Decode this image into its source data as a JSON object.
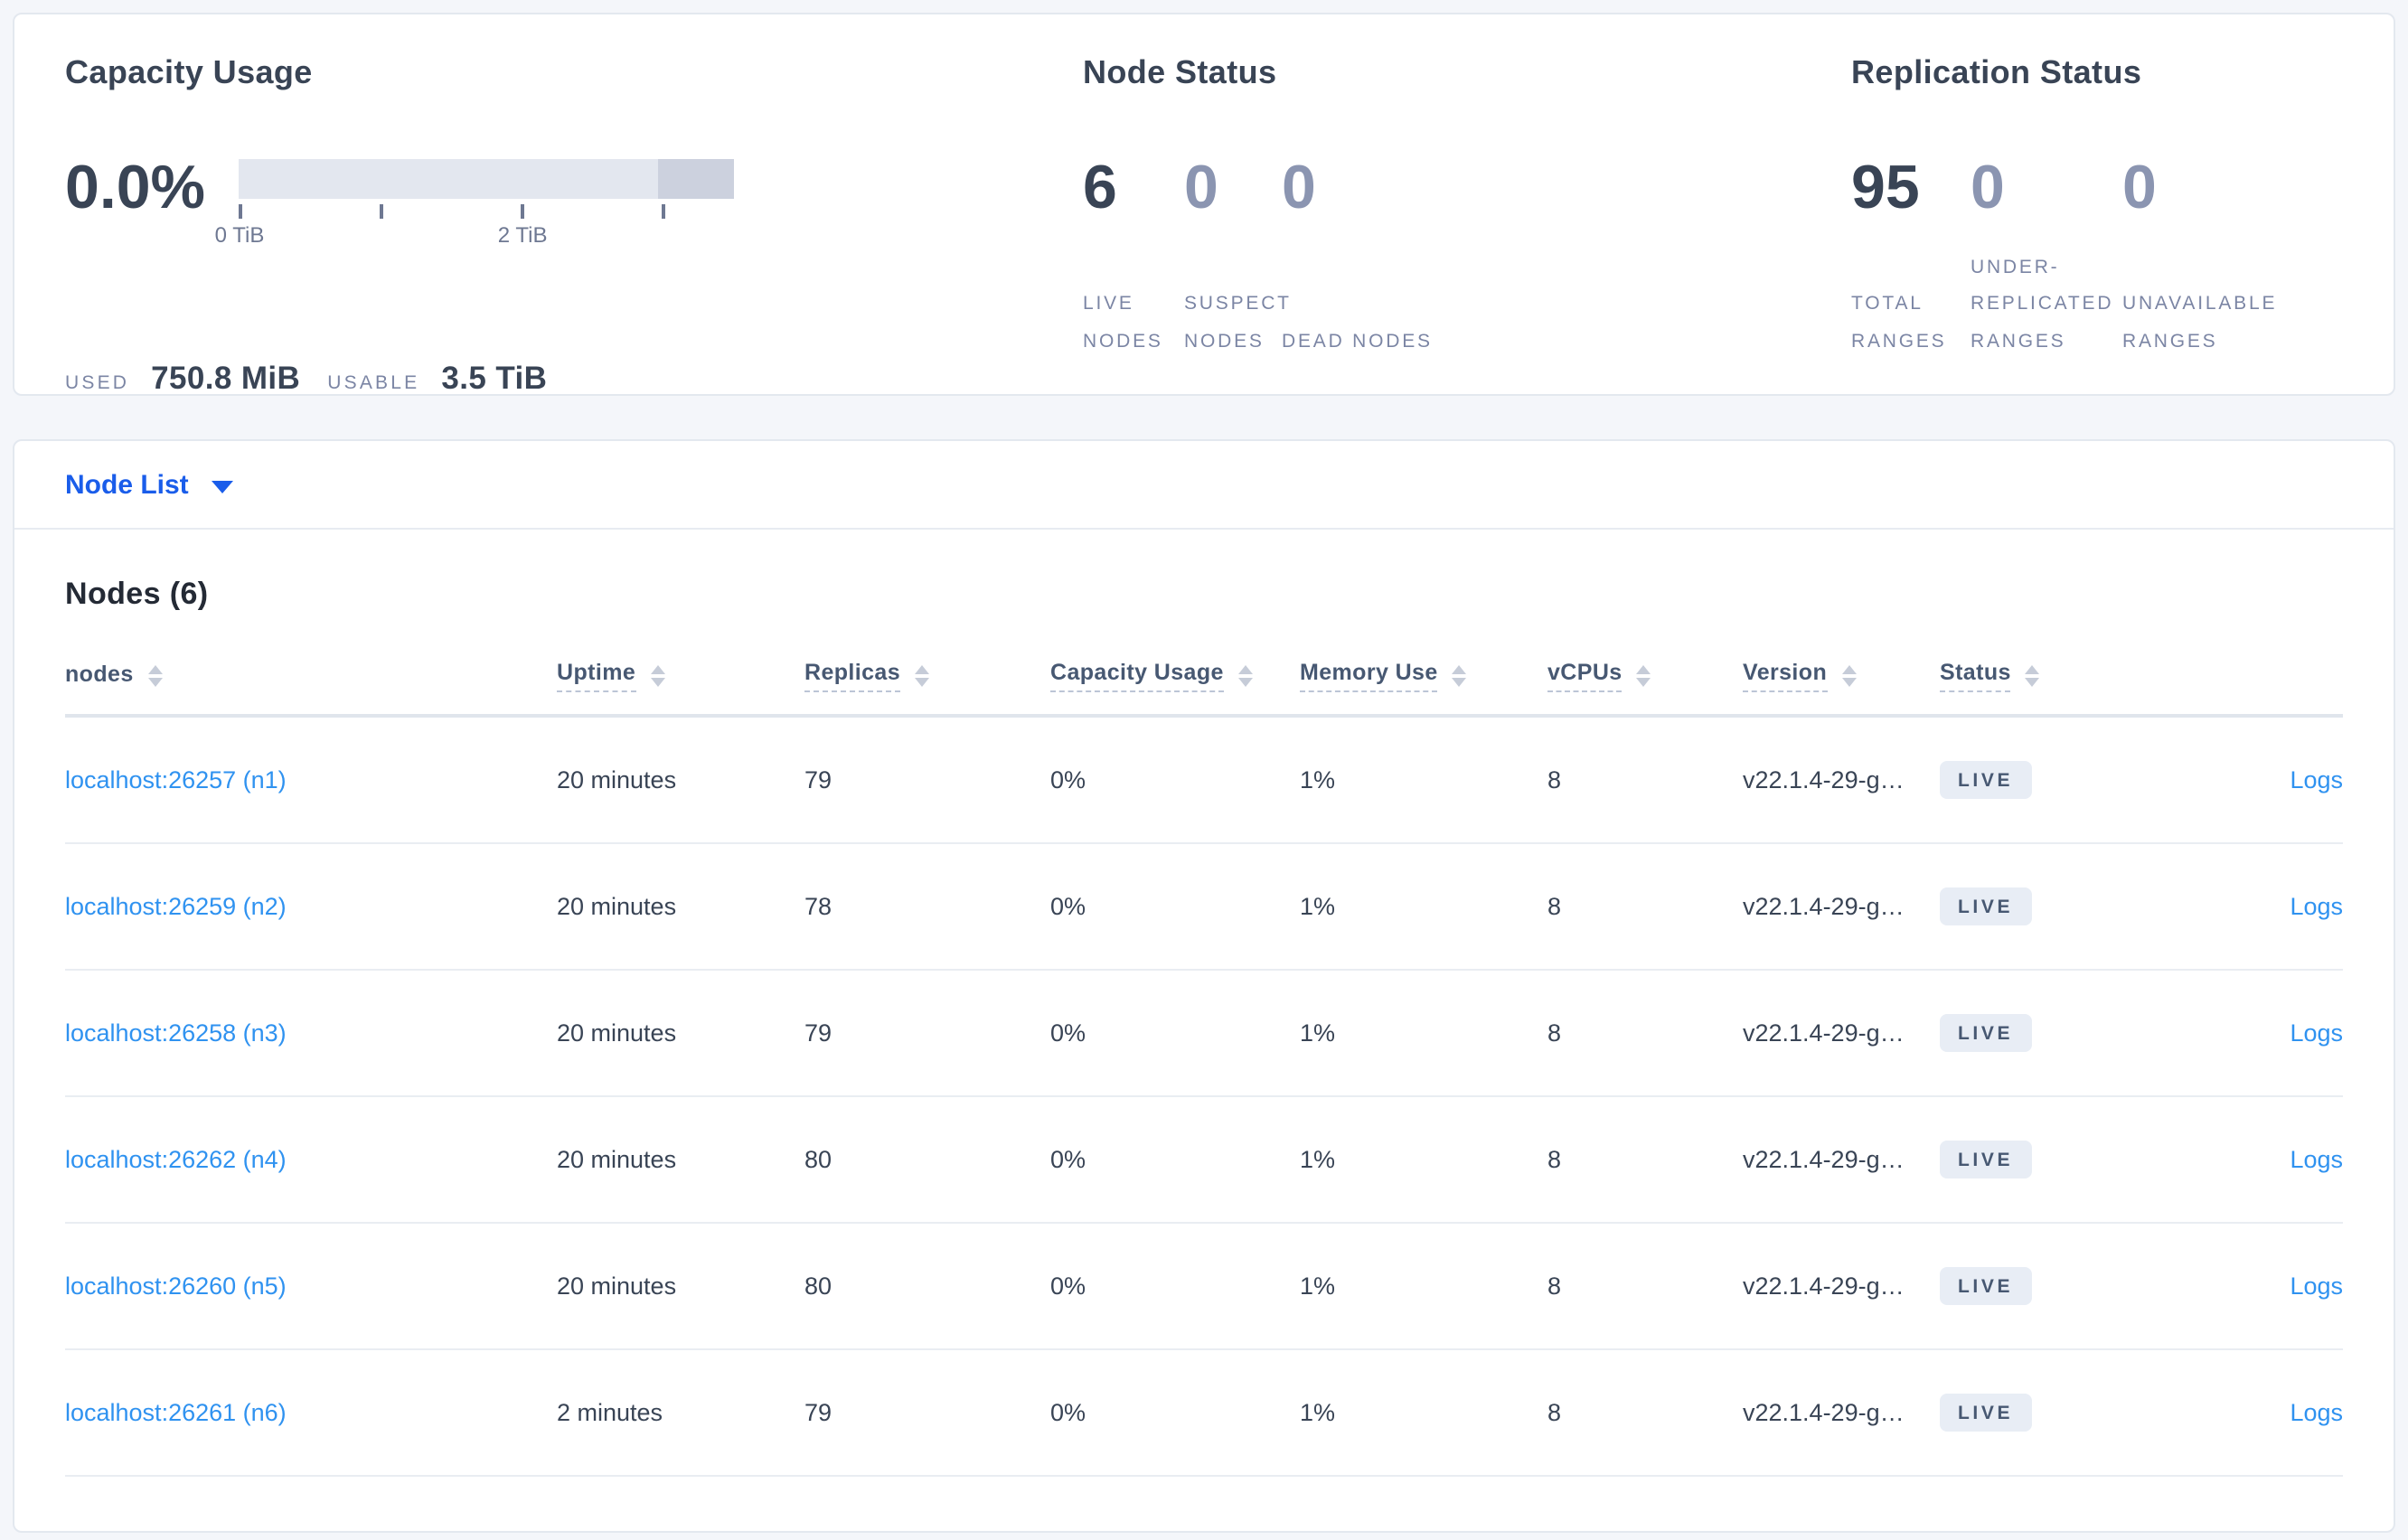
{
  "colors": {
    "page_bg": "#f4f6fa",
    "dark_text": "#394455",
    "muted_label": "#7b85a4",
    "muted_stat": "#8b95b1",
    "link_blue": "#2f92f0",
    "selector_blue": "#1a5dea",
    "bar_light": "#e3e7ef",
    "bar_dark": "#ccd1de",
    "badge_bg": "#e8edf5"
  },
  "capacity_panel": {
    "title": "Capacity Usage",
    "percent": "0.0%",
    "bar": {
      "total_tib": 3.5,
      "tick_step_tib": 1,
      "dark_segment_from_tib": 3
    },
    "tick_labels": [
      {
        "text": "0 TiB",
        "at_tib": 0
      },
      {
        "text": "2 TiB",
        "at_tib": 2
      }
    ],
    "used_label": "USED",
    "used_value": "750.8 MiB",
    "usable_label": "USABLE",
    "usable_value": "3.5 TiB"
  },
  "node_status_panel": {
    "title": "Node Status",
    "stats": [
      {
        "value": "6",
        "label": "LIVE NODES",
        "emphasis": true
      },
      {
        "value": "0",
        "label": "SUSPECT NODES",
        "emphasis": false
      },
      {
        "value": "0",
        "label": "DEAD NODES",
        "emphasis": false
      }
    ]
  },
  "replication_panel": {
    "title": "Replication Status",
    "stats": [
      {
        "value": "95",
        "label": "TOTAL RANGES",
        "emphasis": true
      },
      {
        "value": "0",
        "label": "UNDER-REPLICATED RANGES",
        "emphasis": false
      },
      {
        "value": "0",
        "label": "UNAVAILABLE RANGES",
        "emphasis": false
      }
    ]
  },
  "view_selector": {
    "label": "Node List"
  },
  "nodes_section": {
    "heading": "Nodes (6)",
    "columns": [
      {
        "label": "nodes",
        "key": "address",
        "type": "link",
        "underline": false,
        "sortable": true
      },
      {
        "label": "Uptime",
        "key": "uptime",
        "type": "text",
        "underline": true,
        "sortable": true
      },
      {
        "label": "Replicas",
        "key": "replicas",
        "type": "text",
        "underline": true,
        "sortable": true
      },
      {
        "label": "Capacity Usage",
        "key": "capacity_usage",
        "type": "text",
        "underline": true,
        "sortable": true
      },
      {
        "label": "Memory Use",
        "key": "memory_use",
        "type": "text",
        "underline": true,
        "sortable": true
      },
      {
        "label": "vCPUs",
        "key": "vcpus",
        "type": "text",
        "underline": true,
        "sortable": true
      },
      {
        "label": "Version",
        "key": "version",
        "type": "text",
        "underline": true,
        "sortable": true
      },
      {
        "label": "Status",
        "key": "status",
        "type": "badge",
        "underline": true,
        "sortable": true
      },
      {
        "label": "",
        "key": "logs",
        "type": "logs-link",
        "underline": false,
        "sortable": false
      }
    ],
    "rows": [
      {
        "address": "localhost:26257 (n1)",
        "uptime": "20 minutes",
        "replicas": "79",
        "capacity_usage": "0%",
        "memory_use": "1%",
        "vcpus": "8",
        "version": "v22.1.4-29-g…",
        "status": "LIVE",
        "logs": "Logs"
      },
      {
        "address": "localhost:26259 (n2)",
        "uptime": "20 minutes",
        "replicas": "78",
        "capacity_usage": "0%",
        "memory_use": "1%",
        "vcpus": "8",
        "version": "v22.1.4-29-g…",
        "status": "LIVE",
        "logs": "Logs"
      },
      {
        "address": "localhost:26258 (n3)",
        "uptime": "20 minutes",
        "replicas": "79",
        "capacity_usage": "0%",
        "memory_use": "1%",
        "vcpus": "8",
        "version": "v22.1.4-29-g…",
        "status": "LIVE",
        "logs": "Logs"
      },
      {
        "address": "localhost:26262 (n4)",
        "uptime": "20 minutes",
        "replicas": "80",
        "capacity_usage": "0%",
        "memory_use": "1%",
        "vcpus": "8",
        "version": "v22.1.4-29-g…",
        "status": "LIVE",
        "logs": "Logs"
      },
      {
        "address": "localhost:26260 (n5)",
        "uptime": "20 minutes",
        "replicas": "80",
        "capacity_usage": "0%",
        "memory_use": "1%",
        "vcpus": "8",
        "version": "v22.1.4-29-g…",
        "status": "LIVE",
        "logs": "Logs"
      },
      {
        "address": "localhost:26261 (n6)",
        "uptime": "2 minutes",
        "replicas": "79",
        "capacity_usage": "0%",
        "memory_use": "1%",
        "vcpus": "8",
        "version": "v22.1.4-29-g…",
        "status": "LIVE",
        "logs": "Logs"
      }
    ]
  }
}
